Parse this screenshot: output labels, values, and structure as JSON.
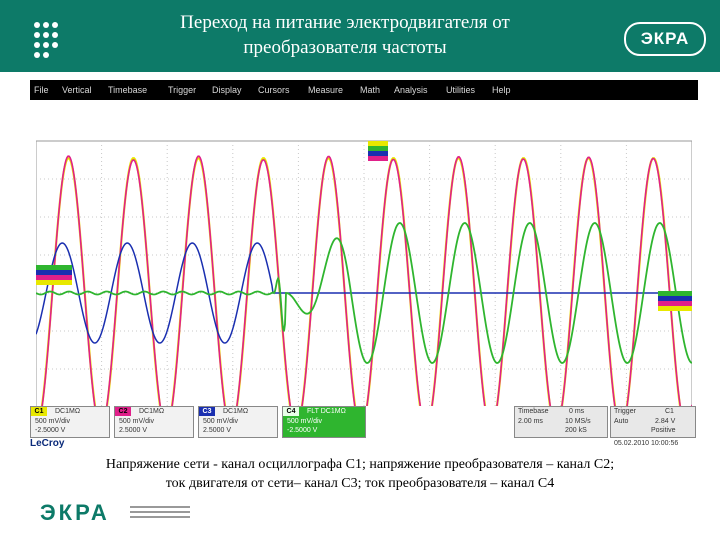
{
  "slide": {
    "title_line1": "Переход на питание электродвигателя от",
    "title_line2": "преобразователя частоты",
    "logo_top": "ЭКРА",
    "logo_bottom": "ЭКРА",
    "caption_line1": "Напряжение сети - канал осциллографа С1; напряжение преобразователя – канал С2;",
    "caption_line2": "ток двигателя от сети– канал С3; ток преобразователя – канал С4"
  },
  "menu": {
    "items": [
      "File",
      "Vertical",
      "Timebase",
      "Trigger",
      "Display",
      "Cursors",
      "Measure",
      "Math",
      "Analysis",
      "Utilities",
      "Help"
    ]
  },
  "channels": [
    {
      "label": "C1",
      "coupling": "DC1MΩ",
      "scale": "500 mV/div",
      "offset": "-2.5000 V",
      "color": "#e8e800"
    },
    {
      "label": "C2",
      "coupling": "DC1MΩ",
      "scale": "500 mV/div",
      "offset": "2.5000 V",
      "color": "#e0208a"
    },
    {
      "label": "C3",
      "coupling": "DC1MΩ",
      "scale": "500 mV/div",
      "offset": "2.5000 V",
      "color": "#1a2fb0"
    },
    {
      "label": "C4",
      "coupling": "FLT DC1MΩ",
      "scale": "500 mV/div",
      "offset": "-2.5000 V",
      "color": "#2fb52f"
    }
  ],
  "timebase": {
    "label": "Timebase",
    "value": "0 ms",
    "tdiv": "2.00 ms",
    "sample": "10 MS/s",
    "samples": "200 kS"
  },
  "trigger": {
    "label": "Trigger",
    "source": "C1",
    "level": "2.84 V",
    "mode": "Auto",
    "slope": "Positive"
  },
  "brand": "LeCroy",
  "datetime": "05.02.2010 10:00:56",
  "colors": {
    "header": "#0d7a68",
    "c1": "#e8e800",
    "c2": "#e0208a",
    "c3": "#1a2fb0",
    "c4": "#2fb52f"
  }
}
